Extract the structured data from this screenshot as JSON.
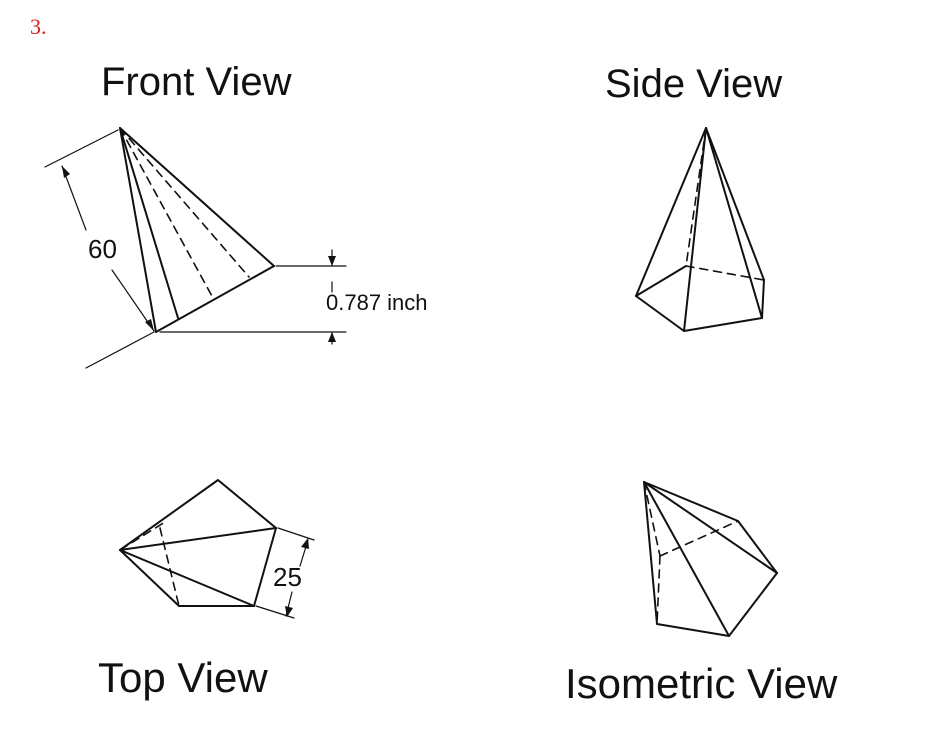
{
  "question_number": "3.",
  "titles": {
    "front": "Front View",
    "side": "Side View",
    "top": "Top View",
    "isometric": "Isometric View"
  },
  "dimensions": {
    "front_length": "60",
    "front_height": "0.787 inch",
    "top_edge": "25"
  },
  "colors": {
    "question_number": "#d8231e",
    "lines": "#111111"
  }
}
